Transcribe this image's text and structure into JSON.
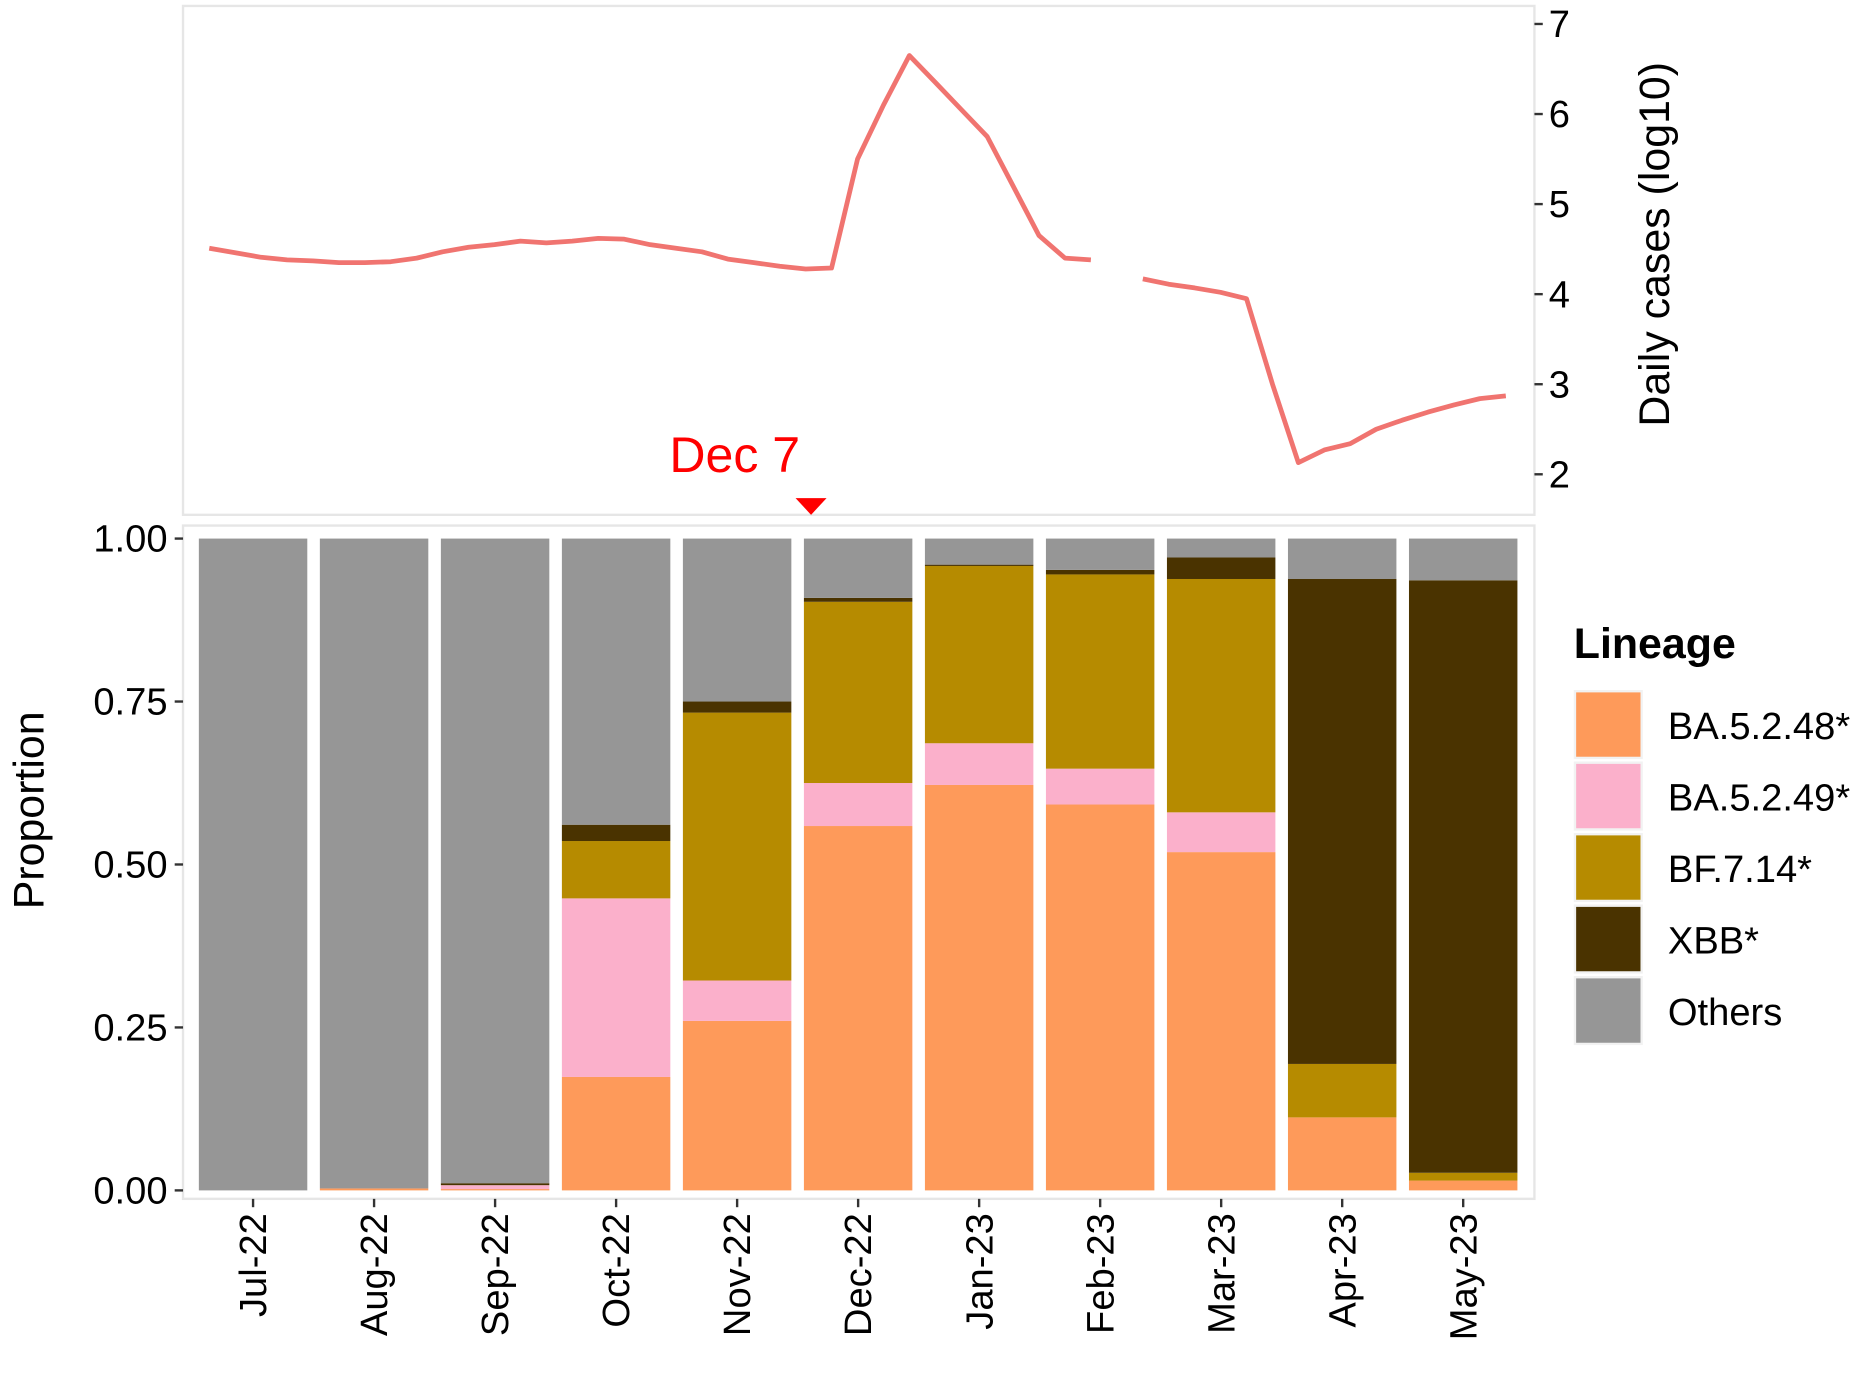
{
  "chart_data": [
    {
      "type": "line",
      "annotation": "Dec 7",
      "y_axis_label": "Daily cases (log10)",
      "y_axis_side": "right",
      "ylim": [
        1.55,
        7.2
      ],
      "yticks": [
        2,
        3,
        4,
        5,
        6,
        7
      ],
      "color": "#f07470",
      "values": [
        4.51,
        4.46,
        4.41,
        4.38,
        4.37,
        4.35,
        4.35,
        4.36,
        4.4,
        4.47,
        4.52,
        4.55,
        4.59,
        4.57,
        4.59,
        4.62,
        4.61,
        4.55,
        4.51,
        4.47,
        4.39,
        4.35,
        4.31,
        4.28,
        4.29,
        5.5,
        6.1,
        6.65,
        6.35,
        6.05,
        5.75,
        5.2,
        4.65,
        4.4,
        4.38,
        null,
        4.17,
        4.11,
        4.07,
        4.02,
        3.95,
        3.0,
        2.13,
        2.27,
        2.34,
        2.5,
        2.6,
        2.69,
        2.77,
        2.84,
        2.87
      ]
    },
    {
      "type": "stacked_bar",
      "y_axis_label": "Proportion",
      "legend_title": "Lineage",
      "legend_position": "right",
      "ylim": [
        -0.013,
        1.02
      ],
      "yticks": [
        {
          "value": 0,
          "label": "0.00"
        },
        {
          "value": 0.25,
          "label": "0.25"
        },
        {
          "value": 0.5,
          "label": "0.50"
        },
        {
          "value": 0.75,
          "label": "0.75"
        },
        {
          "value": 1,
          "label": "1.00"
        }
      ],
      "categories": [
        "Jul-22",
        "Aug-22",
        "Sep-22",
        "Oct-22",
        "Nov-22",
        "Dec-22",
        "Jan-23",
        "Feb-23",
        "Mar-23",
        "Apr-23",
        "May-23"
      ],
      "series": [
        {
          "name": "BA.5.2.48*",
          "color": "#fe9a5a",
          "values": [
            0,
            0.003,
            0.002,
            0.174,
            0.26,
            0.559,
            0.622,
            0.592,
            0.519,
            0.112,
            0.015
          ]
        },
        {
          "name": "BA.5.2.49*",
          "color": "#fbb0cb",
          "values": [
            0,
            0,
            0.006,
            0.274,
            0.062,
            0.066,
            0.064,
            0.055,
            0.061,
            0,
            0
          ]
        },
        {
          "name": "BF.7.14*",
          "color": "#b68b00",
          "values": [
            0,
            0,
            0,
            0.088,
            0.411,
            0.278,
            0.272,
            0.298,
            0.358,
            0.082,
            0.012
          ]
        },
        {
          "name": "XBB*",
          "color": "#4a3300",
          "values": [
            0,
            0,
            0.003,
            0.025,
            0.017,
            0.006,
            0.002,
            0.007,
            0.033,
            0.744,
            0.909
          ]
        },
        {
          "name": "Others",
          "color": "#969696",
          "values": [
            1,
            0.997,
            0.989,
            0.439,
            0.25,
            0.091,
            0.04,
            0.048,
            0.029,
            0.062,
            0.064
          ]
        }
      ]
    }
  ]
}
